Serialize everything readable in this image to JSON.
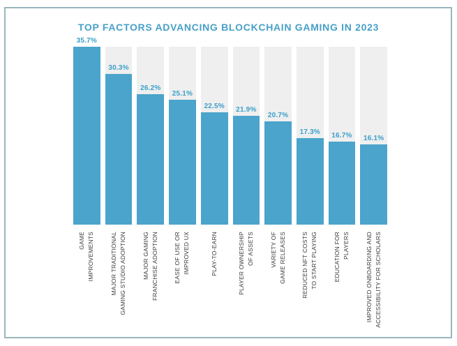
{
  "title": "TOP FACTORS ADVANCING BLOCKCHAIN GAMING IN 2023",
  "colors": {
    "bar": "#4BA4CB",
    "accent_text": "#3A9FCA",
    "track": "#EFEFEF",
    "frame": "#9BB5BE",
    "category_text": "#3D3D3D"
  },
  "chart_data": {
    "type": "bar",
    "title": "TOP FACTORS ADVANCING BLOCKCHAIN GAMING IN 2023",
    "categories": [
      "GAME IMPROVEMENTS",
      "MAJOR TRADITIONAL GAMING STUDIO ADOPTION",
      "MAJOR GAMING FRANCHISE ADOPTION",
      "EASE OF USE OR IMPROVED UX",
      "PLAY-TO-EARN",
      "PLAYER OWNERSHIP OF ASSETS",
      "VARIETY OF GAME RELEASES",
      "REDUCED NFT COSTS TO START PLAYING",
      "EDUCATION FOR PLAYERS",
      "IMPROVED ONBOARDING AND ACCESSIBILITY FOR SCHOLARS"
    ],
    "category_lines": [
      [
        "GAME",
        "IMPROVEMENTS"
      ],
      [
        "MAJOR TRADITIONAL",
        "GAMING STUDIO ADOPTION"
      ],
      [
        "MAJOR GAMING",
        "FRANCHISE ADOPTION"
      ],
      [
        "EASE OF USE OR",
        "IMPROVED UX"
      ],
      [
        "PLAY-TO-EARN"
      ],
      [
        "PLAYER OWNERSHIP",
        "OF ASSETS"
      ],
      [
        "VARIETY OF",
        "GAME RELEASES"
      ],
      [
        "REDUCED NFT COSTS",
        "TO START PLAYING"
      ],
      [
        "EDUCATION FOR",
        "PLAYERS"
      ],
      [
        "IMPROVED ONBOARDING AND",
        "ACCESSIBILITY FOR SCHOLARS"
      ]
    ],
    "values": [
      35.7,
      30.3,
      26.2,
      25.1,
      22.5,
      21.9,
      20.7,
      17.3,
      16.7,
      16.1
    ],
    "value_labels": [
      "35.7%",
      "30.3%",
      "26.2%",
      "25.1%",
      "22.5%",
      "21.9%",
      "20.7%",
      "17.3%",
      "16.7%",
      "16.1%"
    ],
    "xlabel": "",
    "ylabel": "",
    "ylim": [
      0,
      35.7
    ],
    "grid": false,
    "legend": false
  }
}
